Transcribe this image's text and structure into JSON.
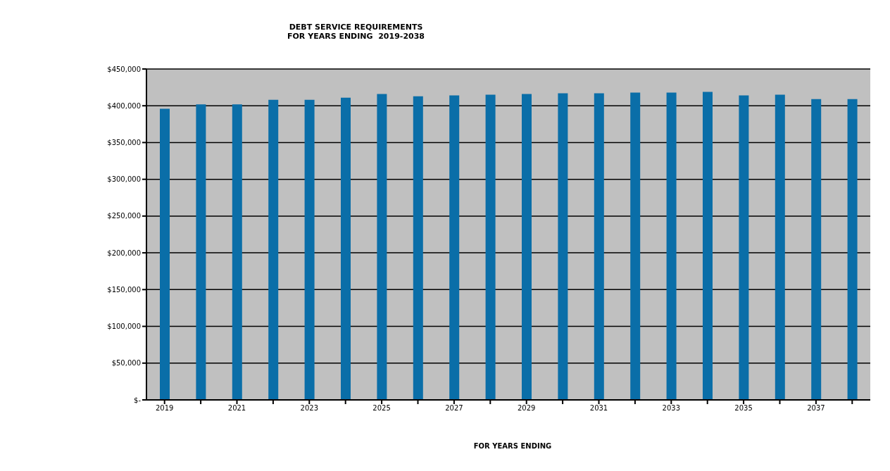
{
  "chart_data": {
    "type": "bar",
    "title": "DEBT SERVICE REQUIREMENTS\nFOR YEARS ENDING  2019-2038",
    "xlabel": "FOR YEARS ENDING",
    "categories": [
      "2019",
      null,
      "2021",
      null,
      "2023",
      null,
      "2025",
      null,
      "2027",
      null,
      "2029",
      null,
      "2031",
      null,
      "2033",
      null,
      "2035",
      null,
      "2037",
      null
    ],
    "values": [
      396000,
      402000,
      402000,
      408000,
      408000,
      411000,
      416000,
      413000,
      414000,
      415000,
      416000,
      417000,
      417000,
      418000,
      418000,
      419000,
      414000,
      415000,
      409000,
      409000
    ],
    "color": "#0a6ea8",
    "ylim": [
      0,
      450000
    ],
    "yticks": [
      {
        "value": 0,
        "label": "$-"
      },
      {
        "value": 50000,
        "label": "$50,000"
      },
      {
        "value": 100000,
        "label": "$100,000"
      },
      {
        "value": 150000,
        "label": "$150,000"
      },
      {
        "value": 200000,
        "label": "$200,000"
      },
      {
        "value": 250000,
        "label": "$250,000"
      },
      {
        "value": 300000,
        "label": "$300,000"
      },
      {
        "value": 350000,
        "label": "$350,000"
      },
      {
        "value": 400000,
        "label": "$400,000"
      },
      {
        "value": 450000,
        "label": "$450,000"
      }
    ],
    "grid": "y",
    "legend": false
  }
}
